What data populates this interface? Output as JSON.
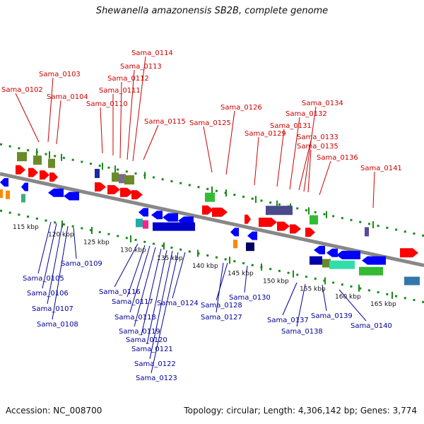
{
  "title": "Shewanella amazonensis SB2B, complete genome",
  "footer": {
    "accession": "Accession: NC_008700",
    "topology": "Topology: circular; Length: 4,306,142 bp; Genes: 3,774"
  },
  "colors": {
    "forward_label": "#cc0000",
    "reverse_label": "#000099",
    "forward_gene": "#ff0000",
    "reverse_gene": "#0000ff",
    "cog_green": "#6a9a2a",
    "backbone": "#888888",
    "tick": "#1a8a1a"
  },
  "scale": {
    "ticks": [
      "115 kbp",
      "120 kbp",
      "125 kbp",
      "130 kbp",
      "135 kbp",
      "140 kbp",
      "145 kbp",
      "150 kbp",
      "155 kbp",
      "160 kbp",
      "165 kbp"
    ]
  },
  "forward_labels": [
    "Sama_0102",
    "Sama_0103",
    "Sama_0104",
    "Sama_0110",
    "Sama_0111",
    "Sama_0112",
    "Sama_0113",
    "Sama_0114",
    "Sama_0115",
    "Sama_0125",
    "Sama_0126",
    "Sama_0129",
    "Sama_0131",
    "Sama_0132",
    "Sama_0133",
    "Sama_0134",
    "Sama_0135",
    "Sama_0136",
    "Sama_0141"
  ],
  "reverse_labels": [
    "Sama_0105",
    "Sama_0106",
    "Sama_0107",
    "Sama_0108",
    "Sama_0109",
    "Sama_0116",
    "Sama_0117",
    "Sama_0118",
    "Sama_0119",
    "Sama_0120",
    "Sama_0121",
    "Sama_0122",
    "Sama_0123",
    "Sama_0124",
    "Sama_0127",
    "Sama_0128",
    "Sama_0130",
    "Sama_0137",
    "Sama_0138",
    "Sama_0139",
    "Sama_0140"
  ]
}
